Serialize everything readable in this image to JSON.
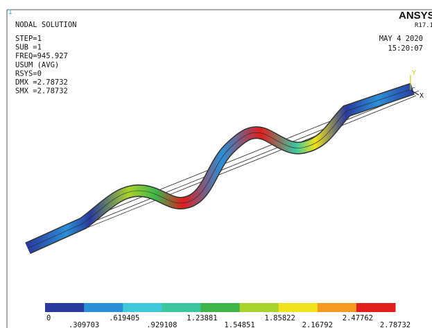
{
  "header": {
    "logo": "ANSYS",
    "version": "R17.1",
    "window_number": "1",
    "title": "NODAL SOLUTION",
    "info": [
      "STEP=1",
      "SUB =1",
      "FREQ=945.927",
      "USUM      (AVG)",
      "RSYS=0",
      "DMX =2.78732",
      "SMX =2.78732"
    ],
    "date": "MAY  4 2020",
    "time": "15:20:07"
  },
  "triad": {
    "x": "X",
    "y": "Y"
  },
  "legend": {
    "colors": [
      "#2a3a9e",
      "#2b8fd8",
      "#3ec8d8",
      "#3cc6a0",
      "#3db54a",
      "#a8d22c",
      "#f0e21c",
      "#f49a1e",
      "#e01e1e"
    ],
    "upper_labels": [
      "0",
      ".619405",
      "1.23881",
      "1.85822",
      "2.47762"
    ],
    "lower_labels": [
      ".309703",
      ".929108",
      "1.54851",
      "2.16792",
      "2.78732"
    ]
  }
}
